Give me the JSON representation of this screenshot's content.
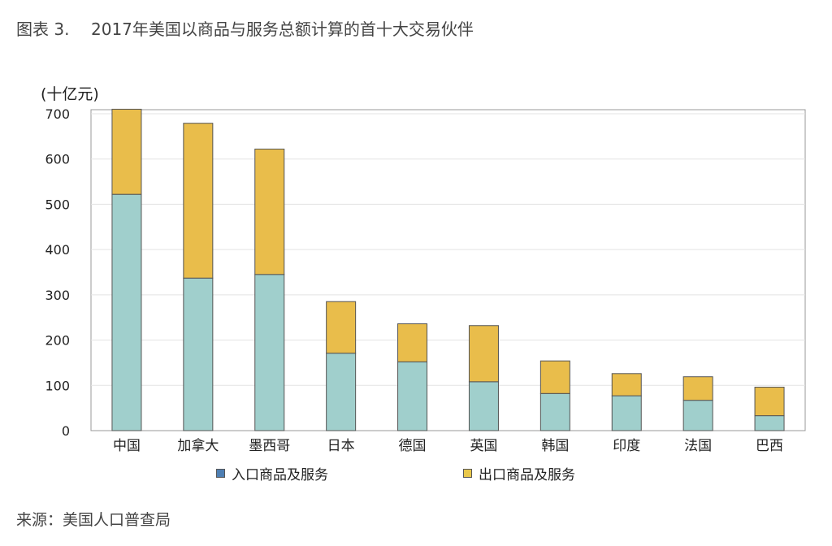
{
  "figure": {
    "number": "图表 3.",
    "title": "2017年美国以商品与服务总额计算的首十大交易伙伴",
    "source": "来源：美国人口普查局"
  },
  "chart_data": {
    "type": "bar",
    "stacked": true,
    "unit_label": "(十亿元)",
    "categories": [
      "中国",
      "加拿大",
      "墨西哥",
      "日本",
      "德国",
      "英国",
      "韩国",
      "印度",
      "法国",
      "巴西"
    ],
    "series": [
      {
        "name": "入口商品及服务",
        "color": "#a0cfcc",
        "legend_color": "#4e7fb3",
        "values": [
          522,
          337,
          345,
          171,
          152,
          108,
          82,
          77,
          67,
          33
        ]
      },
      {
        "name": "出口商品及服务",
        "color": "#e9bd4b",
        "legend_color": "#e9c84b",
        "values": [
          188,
          342,
          277,
          114,
          84,
          124,
          72,
          49,
          52,
          63
        ]
      }
    ],
    "ylim": [
      0,
      700
    ],
    "yticks": [
      0,
      100,
      200,
      300,
      400,
      500,
      600,
      700
    ],
    "grid": true,
    "legend_position": "bottom"
  }
}
